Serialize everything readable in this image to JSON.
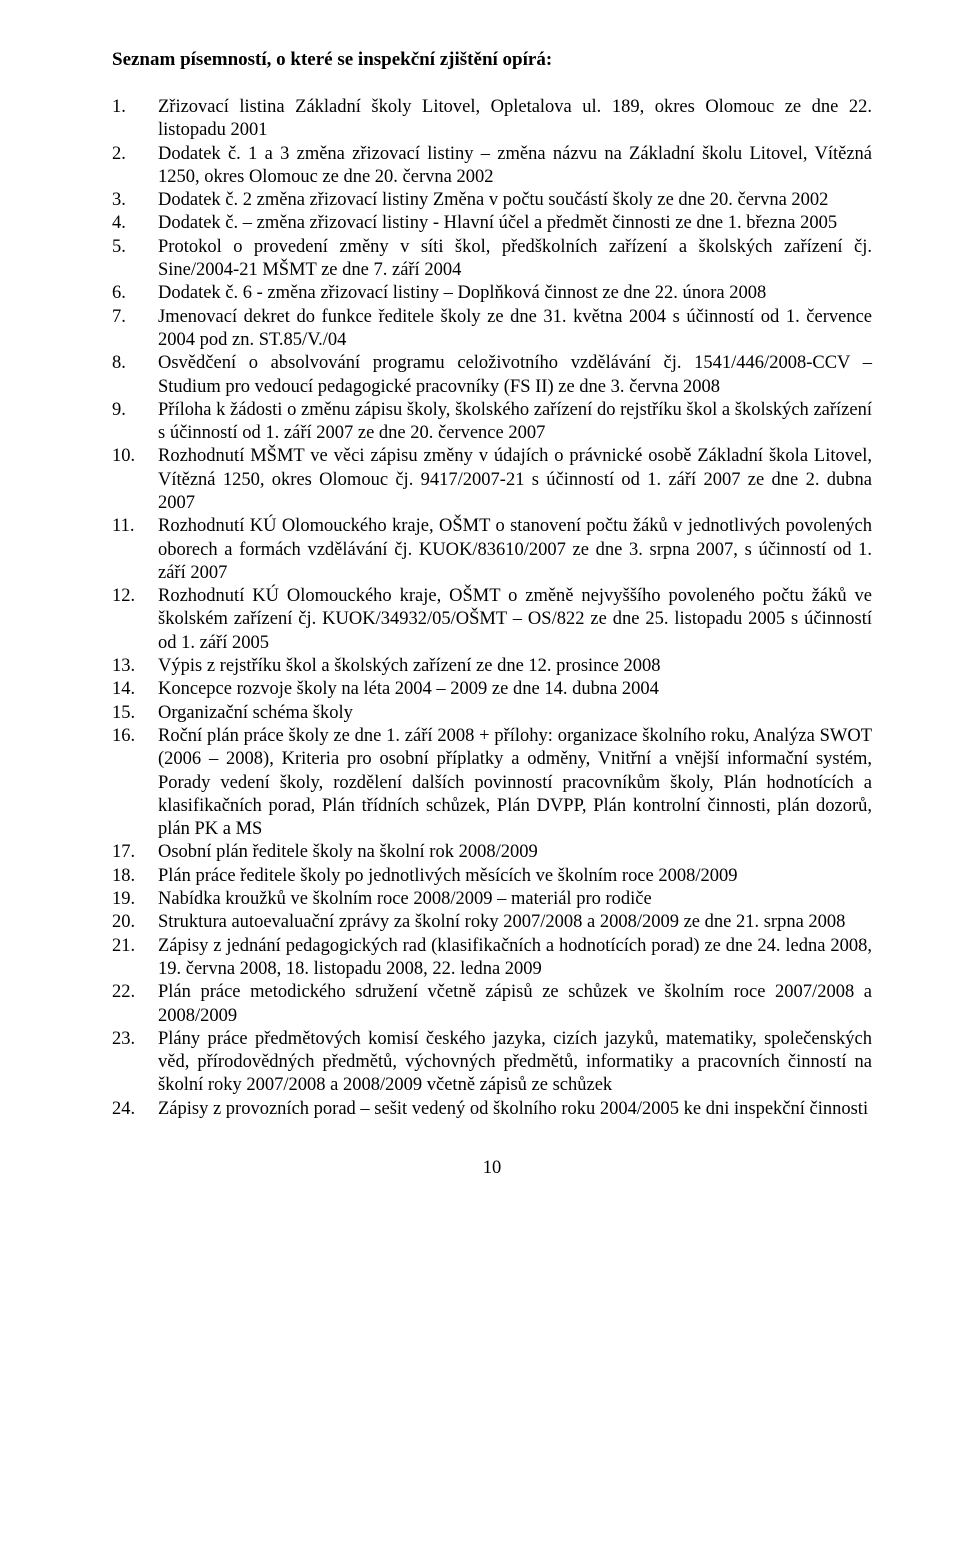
{
  "title": "Seznam písemností, o které se inspekční zjištění opírá:",
  "items": [
    "Zřizovací listina Základní školy Litovel, Opletalova ul. 189, okres Olomouc ze dne 22. listopadu 2001",
    "Dodatek č. 1 a 3 změna zřizovací listiny – změna názvu na Základní školu Litovel, Vítězná 1250, okres Olomouc ze dne 20. června 2002",
    "Dodatek č. 2 změna zřizovací listiny Změna v počtu součástí školy ze dne 20. června 2002",
    "Dodatek č. – změna zřizovací listiny - Hlavní účel a předmět činnosti ze dne 1. března 2005",
    "Protokol o provedení změny v síti škol, předškolních zařízení a školských zařízení čj. Sine/2004-21 MŠMT ze dne 7. září 2004",
    "Dodatek č. 6 - změna zřizovací listiny – Doplňková činnost ze dne 22. února 2008",
    "Jmenovací dekret do funkce ředitele školy ze dne 31. května 2004 s účinností od 1. července 2004 pod zn. ST.85/V./04",
    "Osvědčení o absolvování programu celoživotního vzdělávání čj. 1541/446/2008-CCV – Studium pro vedoucí pedagogické pracovníky (FS II) ze dne 3. června 2008",
    "Příloha k žádosti o změnu zápisu školy, školského zařízení do rejstříku škol a školských zařízení s účinností od 1. září 2007 ze dne 20. července 2007",
    "Rozhodnutí MŠMT ve věci zápisu změny v údajích o právnické osobě Základní škola Litovel, Vítězná 1250, okres Olomouc čj. 9417/2007-21 s účinností od 1. září 2007 ze dne 2. dubna 2007",
    "Rozhodnutí KÚ Olomouckého kraje, OŠMT o stanovení počtu žáků v jednotlivých povolených oborech a formách vzdělávání čj. KUOK/83610/2007 ze dne 3. srpna 2007, s účinností od 1. září 2007",
    "Rozhodnutí KÚ Olomouckého kraje, OŠMT o změně nejvyššího povoleného počtu žáků ve školském zařízení čj. KUOK/34932/05/OŠMT – OS/822 ze dne 25. listopadu 2005 s účinností od 1. září 2005",
    "Výpis z rejstříku škol a školských zařízení ze dne 12. prosince 2008",
    "Koncepce rozvoje školy na léta 2004 – 2009 ze dne 14. dubna 2004",
    "Organizační schéma školy",
    "Roční plán práce školy ze dne 1. září 2008 + přílohy: organizace školního roku, Analýza SWOT (2006 – 2008), Kriteria pro osobní příplatky a odměny, Vnitřní a vnější informační systém, Porady vedení školy, rozdělení dalších povinností pracovníkům školy, Plán hodnotících a klasifikačních porad, Plán třídních schůzek, Plán DVPP, Plán kontrolní činnosti, plán dozorů, plán PK a MS",
    "Osobní plán ředitele školy na školní rok 2008/2009",
    "Plán práce ředitele školy po jednotlivých měsících ve školním roce 2008/2009",
    "Nabídka kroužků ve školním roce 2008/2009 – materiál pro rodiče",
    "Struktura autoevaluační zprávy za školní roky 2007/2008 a 2008/2009 ze dne 21. srpna 2008",
    "Zápisy z jednání pedagogických rad (klasifikačních a hodnotících porad) ze dne 24. ledna 2008, 19. června 2008, 18. listopadu 2008, 22. ledna 2009",
    "Plán práce metodického sdružení včetně zápisů ze schůzek ve školním roce 2007/2008 a 2008/2009",
    "Plány práce předmětových komisí českého jazyka, cizích jazyků, matematiky, společenských věd, přírodovědných předmětů, výchovných předmětů, informatiky a pracovních činností na školní roky 2007/2008 a 2008/2009 včetně zápisů ze schůzek",
    "Zápisy z provozních porad – sešit vedený od školního roku 2004/2005 ke dni inspekční činnosti"
  ],
  "page_number": "10"
}
